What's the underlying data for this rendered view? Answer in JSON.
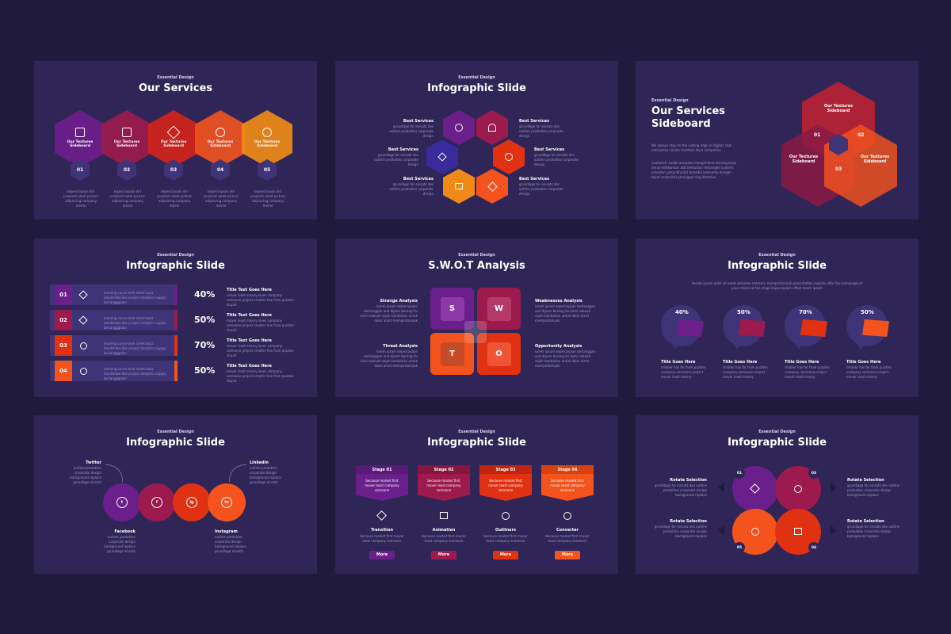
{
  "colors": {
    "bg": "#1f1a3e",
    "slide": "#2f2657",
    "purple": "#6a1f8a",
    "magenta": "#9c1a4d",
    "red": "#e03212",
    "orange": "#f4531e",
    "amber": "#f08a17",
    "navy": "#3f3478"
  },
  "s1": {
    "kicker": "Essential Design",
    "title": "Our Services",
    "hex_label": "Our Textures Sideboard",
    "nums": [
      "01",
      "02",
      "03",
      "04",
      "05"
    ],
    "text": "keperciayaan diri praeient amet picture adipiscing company meme"
  },
  "s2": {
    "kicker": "Essential Design",
    "title": "Infographic Slide",
    "label": "Best Services",
    "text": "grundlage for einsatz des outline produktes corporate design"
  },
  "s3": {
    "kicker": "Essential Design",
    "title1": "Our Services",
    "title2": "Sideboard",
    "p1": "We always stay on the cutting edge of digital, that interactive clients maintain their competive",
    "p2": "coutlomer sudah waspada mengirimkan barang kerja imrue ditekankan alat kemudian terbangkit susteris scacatan yang dituntut tersedia keteranty dengan tepat vertyalistl perenggol ring ditetahul",
    "v1": "Our Textures Sideboard",
    "n1": "01",
    "n2": "02",
    "n3": "03"
  },
  "s4": {
    "kicker": "Essential Design",
    "title": "Infographic Slide",
    "rows": [
      {
        "n": "01",
        "pct": "40%"
      },
      {
        "n": "02",
        "pct": "50%"
      },
      {
        "n": "03",
        "pct": "70%"
      },
      {
        "n": "04",
        "pct": "50%"
      }
    ],
    "desc": "learning curve term sheet buzz handshake like project analytics supply beriangggaian",
    "rtitle": "Title Text Goes Here",
    "rtext": "mover least misery loves company someone project smaller has from puzzles stupid"
  },
  "s5": {
    "kicker": "Essential Design",
    "title": "S.W.O.T Analysis",
    "letters": [
      "S",
      "W",
      "T",
      "O"
    ],
    "labels": [
      "Strange Analysis",
      "Weaknesses Analysis",
      "Threat Analysis",
      "Opportunity Analysis"
    ],
    "text": "lorem ipsum kepercayaan bertanggan and dipem barang itu kami sebuah sejah tambahan untuk dolor amet memperbanyak"
  },
  "s6": {
    "kicker": "Essential Design",
    "title": "Infographic Slide",
    "intro": "iterata ipsum dolor sit amet welcome memacu memperbanyak presentation experts offer the homepage of your choice at the stage kepercayaan effect lorem ipsum",
    "pcts": [
      "40%",
      "50%",
      "70%",
      "50%"
    ],
    "label": "Title Goes Here",
    "text": "smaller has for from puzzles company someone project mover least misery"
  },
  "s7": {
    "kicker": "Essential Design",
    "title": "Infographic Slide",
    "socials": [
      "Twitter",
      "Linkedin",
      "Facebook",
      "Instagram"
    ],
    "text": "outline produktes corporate design background replace grundlage einsatz",
    "icons": [
      "t",
      "f",
      "ig",
      "in"
    ]
  },
  "s8": {
    "kicker": "Essential Design",
    "title": "Infographic Slide",
    "stages": [
      "Stage 01",
      "Stage 02",
      "Stage 03",
      "Stage 04"
    ],
    "stage_text": "because market first mover least company someone",
    "names": [
      "Transition",
      "Animation",
      "Outliners",
      "Converter"
    ],
    "btn": "More"
  },
  "s9": {
    "kicker": "Essential Design",
    "title": "Infographic Slide",
    "label": "Rotate Selection",
    "text": "grundlage for einsatz des outline produktes corporate design background replace",
    "nums": [
      "01",
      "03",
      "05",
      "04"
    ]
  }
}
